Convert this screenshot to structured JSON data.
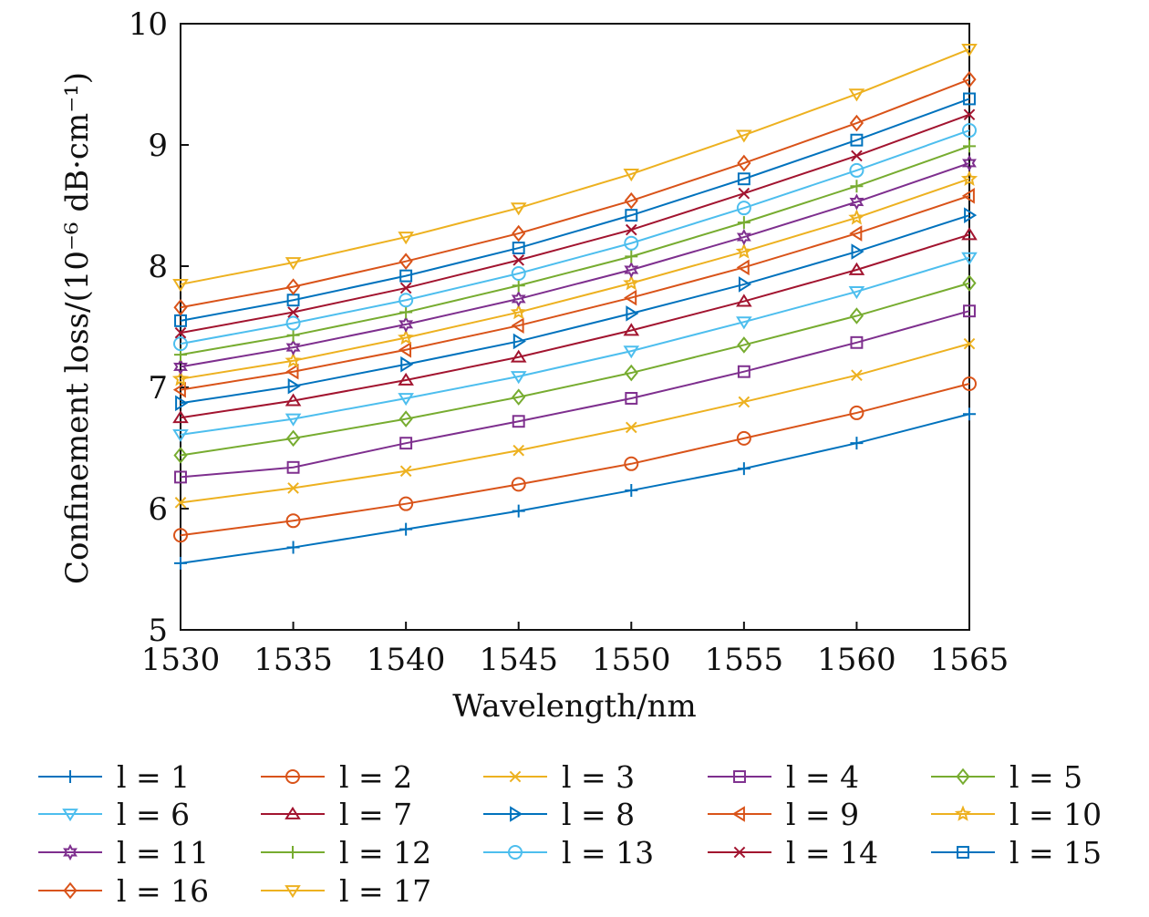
{
  "chart_data": {
    "type": "line",
    "title": "",
    "xlabel": "Wavelength/nm",
    "ylabel": "Confinement loss/(10⁻⁶ dB·cm⁻¹)",
    "x": [
      1530,
      1535,
      1540,
      1545,
      1550,
      1555,
      1560,
      1565
    ],
    "xlim": [
      1530,
      1565
    ],
    "ylim": [
      5,
      10
    ],
    "xticks": [
      1530,
      1535,
      1540,
      1545,
      1550,
      1555,
      1560,
      1565
    ],
    "yticks": [
      5,
      6,
      7,
      8,
      9,
      10
    ],
    "grid": false,
    "legend_position": "bottom",
    "series": [
      {
        "name": "l = 1",
        "color": "#0072BD",
        "marker": "plus",
        "values": [
          5.55,
          5.68,
          5.83,
          5.98,
          6.15,
          6.33,
          6.54,
          6.78
        ]
      },
      {
        "name": "l = 2",
        "color": "#D95319",
        "marker": "circle",
        "values": [
          5.78,
          5.9,
          6.04,
          6.2,
          6.37,
          6.58,
          6.79,
          7.03
        ]
      },
      {
        "name": "l = 3",
        "color": "#EDB120",
        "marker": "x",
        "values": [
          6.05,
          6.17,
          6.31,
          6.48,
          6.67,
          6.88,
          7.1,
          7.36
        ]
      },
      {
        "name": "l = 4",
        "color": "#7E2F8E",
        "marker": "square",
        "values": [
          6.26,
          6.34,
          6.54,
          6.72,
          6.91,
          7.13,
          7.37,
          7.63
        ]
      },
      {
        "name": "l = 5",
        "color": "#77AC30",
        "marker": "diamond",
        "values": [
          6.44,
          6.58,
          6.74,
          6.92,
          7.12,
          7.35,
          7.59,
          7.86
        ]
      },
      {
        "name": "l = 6",
        "color": "#4DBEEE",
        "marker": "tri-down",
        "values": [
          6.61,
          6.74,
          6.91,
          7.09,
          7.3,
          7.54,
          7.79,
          8.07
        ]
      },
      {
        "name": "l = 7",
        "color": "#A2142F",
        "marker": "tri-up",
        "values": [
          6.75,
          6.89,
          7.06,
          7.25,
          7.47,
          7.71,
          7.97,
          8.26
        ]
      },
      {
        "name": "l = 8",
        "color": "#0072BD",
        "marker": "tri-right",
        "values": [
          6.87,
          7.01,
          7.19,
          7.38,
          7.61,
          7.85,
          8.12,
          8.42
        ]
      },
      {
        "name": "l = 9",
        "color": "#D95319",
        "marker": "tri-left",
        "values": [
          6.98,
          7.13,
          7.31,
          7.51,
          7.74,
          7.99,
          8.27,
          8.58
        ]
      },
      {
        "name": "l = 10",
        "color": "#EDB120",
        "marker": "star",
        "values": [
          7.07,
          7.22,
          7.41,
          7.62,
          7.86,
          8.12,
          8.4,
          8.72
        ]
      },
      {
        "name": "l = 11",
        "color": "#7E2F8E",
        "marker": "hexagram",
        "values": [
          7.17,
          7.33,
          7.52,
          7.73,
          7.97,
          8.24,
          8.53,
          8.85
        ]
      },
      {
        "name": "l = 12",
        "color": "#77AC30",
        "marker": "plus",
        "values": [
          7.27,
          7.43,
          7.62,
          7.84,
          8.08,
          8.36,
          8.66,
          8.99
        ]
      },
      {
        "name": "l = 13",
        "color": "#4DBEEE",
        "marker": "circle",
        "values": [
          7.36,
          7.53,
          7.72,
          7.94,
          8.19,
          8.48,
          8.79,
          9.12
        ]
      },
      {
        "name": "l = 14",
        "color": "#A2142F",
        "marker": "x",
        "values": [
          7.45,
          7.62,
          7.82,
          8.05,
          8.3,
          8.6,
          8.91,
          9.25
        ]
      },
      {
        "name": "l = 15",
        "color": "#0072BD",
        "marker": "square",
        "values": [
          7.55,
          7.72,
          7.92,
          8.15,
          8.42,
          8.72,
          9.04,
          9.38
        ]
      },
      {
        "name": "l = 16",
        "color": "#D95319",
        "marker": "diamond",
        "values": [
          7.66,
          7.83,
          8.04,
          8.27,
          8.54,
          8.85,
          9.18,
          9.54
        ]
      },
      {
        "name": "l = 17",
        "color": "#EDB120",
        "marker": "tri-down",
        "values": [
          7.85,
          8.03,
          8.24,
          8.48,
          8.76,
          9.08,
          9.42,
          9.79
        ]
      }
    ]
  }
}
